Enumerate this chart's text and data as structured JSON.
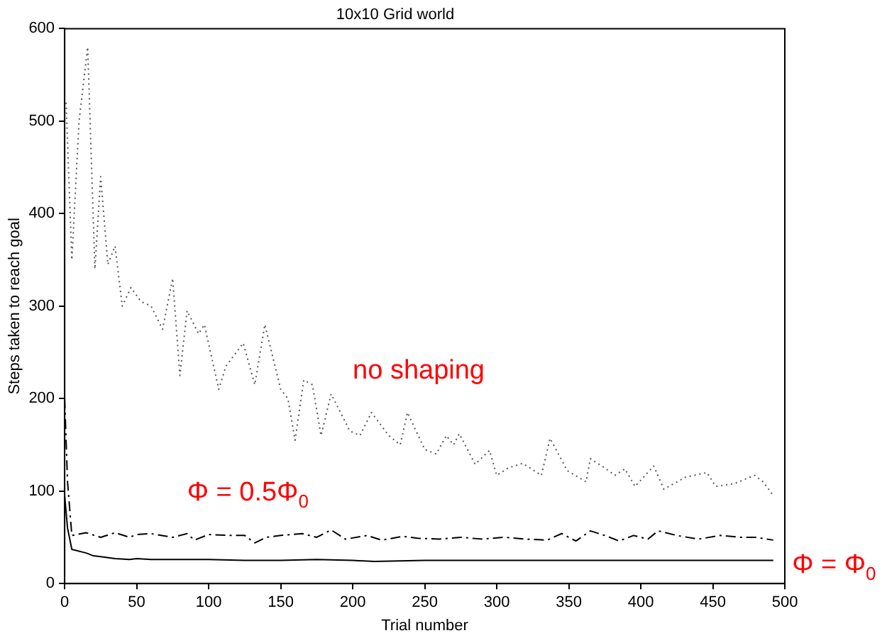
{
  "chart_data": {
    "type": "line",
    "title": "10x10 Grid world",
    "xlabel": "Trial number",
    "ylabel": "Steps taken to reach goal",
    "xlim": [
      0,
      500
    ],
    "xticks": [
      0,
      50,
      100,
      150,
      200,
      250,
      300,
      350,
      400,
      450,
      500
    ],
    "ylim": [
      0,
      600
    ],
    "yticks": [
      0,
      100,
      200,
      300,
      400,
      500,
      600
    ],
    "grid": false,
    "legend": false,
    "marker": "none",
    "series": [
      {
        "name": "no shaping",
        "color": "#555555",
        "line_style": "dotted",
        "x": [
          1,
          5,
          10,
          16,
          21,
          25,
          30,
          35,
          40,
          46,
          53,
          60,
          68,
          75,
          80,
          85,
          93,
          97,
          107,
          112,
          124,
          132,
          139,
          150,
          155,
          160,
          166,
          172,
          178,
          185,
          198,
          205,
          213,
          225,
          233,
          238,
          250,
          258,
          265,
          270,
          274,
          285,
          295,
          300,
          308,
          318,
          331,
          337,
          349,
          362,
          365,
          375,
          382,
          389,
          396,
          409,
          416,
          431,
          446,
          452,
          465,
          479,
          485,
          492
        ],
        "values": [
          520,
          350,
          500,
          580,
          340,
          440,
          345,
          365,
          300,
          320,
          305,
          300,
          275,
          330,
          225,
          295,
          270,
          280,
          210,
          235,
          260,
          215,
          280,
          210,
          200,
          155,
          220,
          215,
          160,
          205,
          165,
          160,
          185,
          160,
          150,
          185,
          145,
          140,
          160,
          150,
          162,
          129,
          144,
          117,
          125,
          130,
          117,
          157,
          122,
          110,
          135,
          125,
          117,
          124,
          105,
          127,
          102,
          115,
          120,
          105,
          108,
          117,
          110,
          95
        ]
      },
      {
        "name": "Φ = 0.5Φ$_{0}$",
        "color": "#000000",
        "line_style": "dashed",
        "x": [
          0,
          2,
          5,
          15,
          25,
          35,
          45,
          50,
          60,
          75,
          85,
          90,
          100,
          115,
          125,
          132,
          140,
          150,
          165,
          175,
          185,
          195,
          210,
          220,
          235,
          245,
          260,
          275,
          290,
          305,
          320,
          335,
          345,
          355,
          365,
          375,
          385,
          395,
          405,
          412,
          425,
          440,
          455,
          470,
          480,
          492
        ],
        "values": [
          200,
          110,
          52,
          55,
          50,
          55,
          50,
          53,
          54,
          50,
          54,
          47,
          53,
          52,
          52,
          44,
          50,
          52,
          54,
          50,
          58,
          48,
          52,
          47,
          51,
          49,
          48,
          50,
          48,
          50,
          48,
          47,
          54,
          46,
          57,
          52,
          46,
          52,
          48,
          57,
          52,
          48,
          52,
          50,
          50,
          47
        ]
      },
      {
        "name": "Φ = Φ$_{0}$",
        "color": "#000000",
        "line_style": "solid",
        "x": [
          0,
          2,
          5,
          15,
          20,
          25,
          35,
          45,
          50,
          60,
          75,
          100,
          125,
          150,
          175,
          200,
          215,
          250,
          275,
          300,
          350,
          400,
          450,
          492
        ],
        "values": [
          95,
          60,
          37,
          33,
          30,
          29,
          27,
          26,
          27,
          26,
          26,
          26,
          25,
          25,
          26,
          25,
          24,
          25,
          25,
          25,
          25,
          25,
          25,
          25
        ]
      }
    ]
  }
}
